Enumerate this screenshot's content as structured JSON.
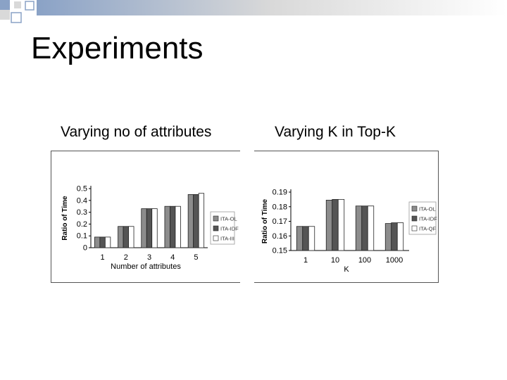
{
  "slide": {
    "title": "Experiments",
    "caption_left": "Varying no of attributes",
    "caption_right": "Varying K in Top-K"
  },
  "colors": {
    "series_dark": "#555555",
    "series_medium": "#8c8c8c",
    "series_light": "#ffffff",
    "decor_gray": "#d9d9d9",
    "decor_blue": "#8aa2c6"
  },
  "chart_data": [
    {
      "type": "bar",
      "categories": [
        "1",
        "2",
        "3",
        "4",
        "5"
      ],
      "xlabel": "Number of attributes",
      "ylabel": "Ratio of Time",
      "ylim": [
        0,
        0.5
      ],
      "yticks": [
        "0",
        "0.1",
        "0.2",
        "0.3",
        "0.4",
        "0.5"
      ],
      "legend_position": "right",
      "grid": false,
      "series": [
        {
          "name": "ITA-OL",
          "values": [
            0.09,
            0.18,
            0.33,
            0.35,
            0.45
          ]
        },
        {
          "name": "ITA-IDF",
          "values": [
            0.09,
            0.18,
            0.33,
            0.35,
            0.45
          ]
        },
        {
          "name": "ITA-III",
          "values": [
            0.09,
            0.18,
            0.33,
            0.35,
            0.46
          ]
        }
      ]
    },
    {
      "type": "bar",
      "categories": [
        "1",
        "10",
        "100",
        "1000"
      ],
      "xlabel": "K",
      "ylabel": "Ratio of Time",
      "ylim": [
        0.15,
        0.19
      ],
      "yticks": [
        "0.15",
        "0.16",
        "0.17",
        "0.18",
        "0.19"
      ],
      "legend_position": "right",
      "grid": false,
      "series": [
        {
          "name": "ITA-OL",
          "values": [
            0.1665,
            0.1845,
            0.1805,
            0.1685
          ]
        },
        {
          "name": "ITA-IDF",
          "values": [
            0.1665,
            0.185,
            0.1805,
            0.169
          ]
        },
        {
          "name": "ITA-QF",
          "values": [
            0.1665,
            0.185,
            0.1805,
            0.169
          ]
        }
      ]
    }
  ]
}
